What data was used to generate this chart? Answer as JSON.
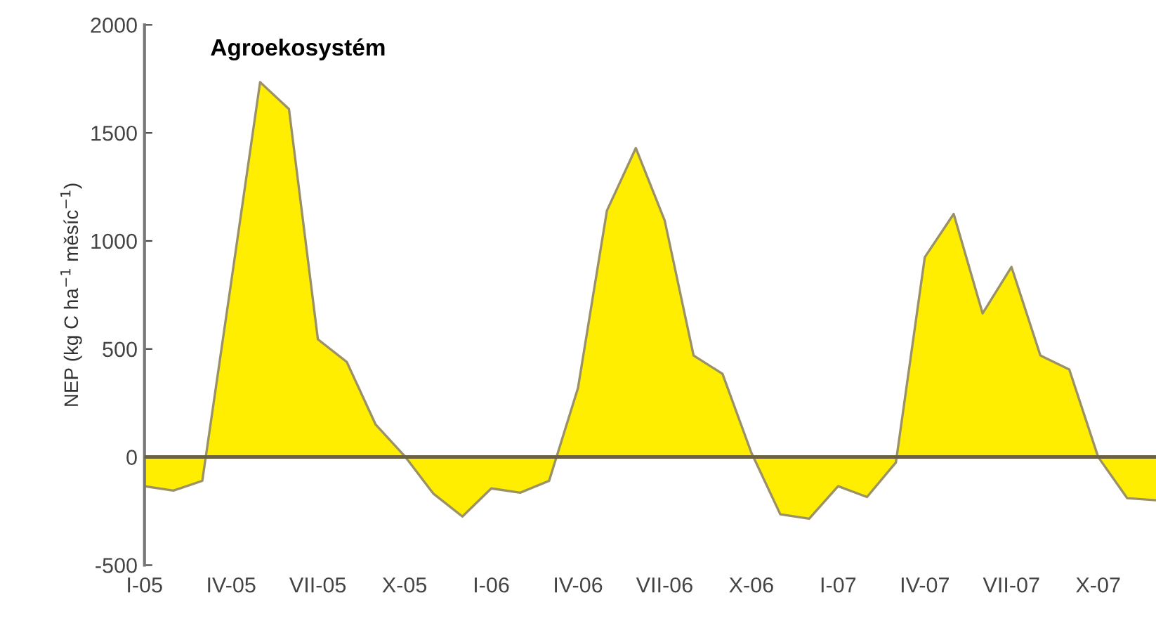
{
  "chart_data": {
    "type": "area",
    "title": "Agroekosystém",
    "ylabel": "NEP (kg C ha$^{−1}$ měsíc$^{−1}$)",
    "categories": [
      "I-05",
      null,
      null,
      "IV-05",
      null,
      null,
      "VII-05",
      null,
      null,
      "X-05",
      null,
      null,
      "I-06",
      null,
      null,
      "IV-06",
      null,
      null,
      "VII-06",
      null,
      null,
      "X-06",
      null,
      null,
      "I-07",
      null,
      null,
      "IV-07",
      null,
      null,
      "VII-07",
      null,
      null,
      "X-07",
      null,
      null
    ],
    "series": [
      {
        "color": "#ffee00",
        "values": [
          -135,
          -155,
          -110,
          810,
          1735,
          1610,
          545,
          440,
          150,
          5,
          -170,
          -275,
          -145,
          -165,
          -110,
          320,
          1140,
          1430,
          1095,
          470,
          385,
          20,
          -265,
          -285,
          -135,
          -185,
          -25,
          925,
          1125,
          665,
          880,
          470,
          405,
          0,
          -190,
          -200
        ]
      }
    ],
    "ylim": [
      -500,
      2000
    ],
    "yticks": [
      -500,
      0,
      500,
      1000,
      1500,
      2000
    ],
    "ref_lines": [
      {
        "axis": "y",
        "value": 0,
        "color": "#6b6040"
      }
    ],
    "grid": false,
    "legend": false
  }
}
